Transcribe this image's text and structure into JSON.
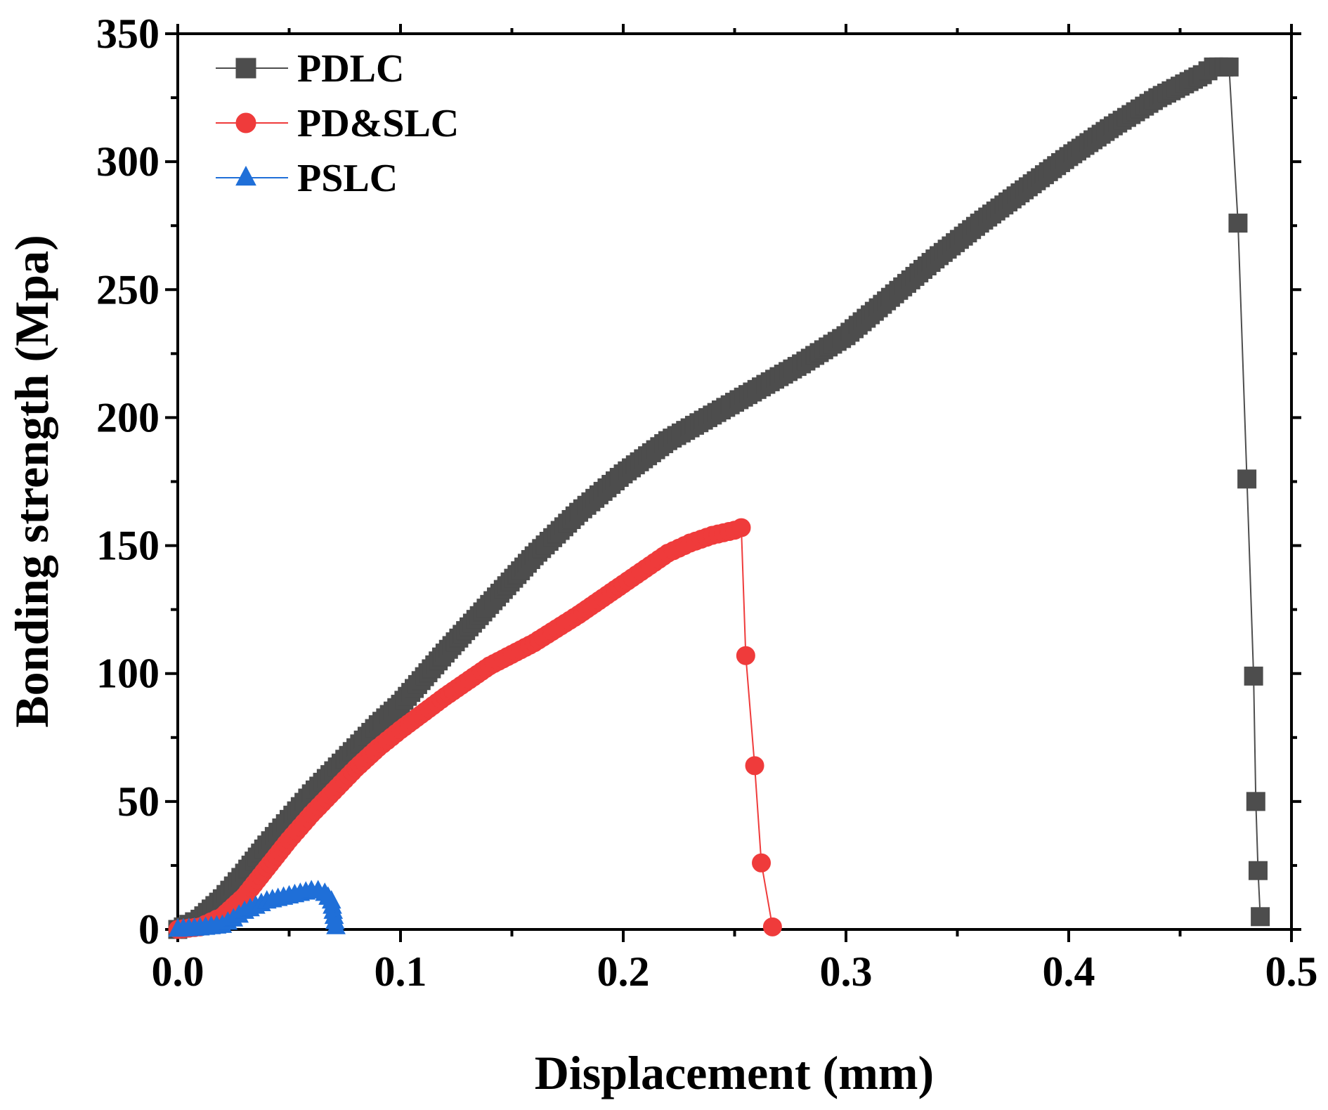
{
  "chart_data": {
    "type": "line",
    "title": "",
    "xlabel": "Displacement (mm)",
    "ylabel": "Bonding strength (Mpa)",
    "xlim": [
      0,
      0.5
    ],
    "ylim": [
      0,
      350
    ],
    "x_ticks": [
      0.0,
      0.1,
      0.2,
      0.3,
      0.4,
      0.5
    ],
    "x_tick_labels": [
      "0.0",
      "0.1",
      "0.2",
      "0.3",
      "0.4",
      "0.5"
    ],
    "y_ticks": [
      0,
      50,
      100,
      150,
      200,
      250,
      300,
      350
    ],
    "y_tick_labels": [
      "0",
      "50",
      "100",
      "150",
      "200",
      "250",
      "300",
      "350"
    ],
    "legend_position": "top-left",
    "grid": false,
    "series": [
      {
        "name": "PDLC",
        "color": "#4d4d4d",
        "marker": "square",
        "x": [
          0.0,
          0.01,
          0.02,
          0.03,
          0.04,
          0.05,
          0.06,
          0.07,
          0.08,
          0.09,
          0.1,
          0.12,
          0.14,
          0.16,
          0.18,
          0.2,
          0.22,
          0.24,
          0.26,
          0.28,
          0.3,
          0.32,
          0.34,
          0.36,
          0.38,
          0.4,
          0.42,
          0.44,
          0.46,
          0.465,
          0.472,
          0.476,
          0.48,
          0.483,
          0.484,
          0.485,
          0.486
        ],
        "y": [
          0,
          4,
          12,
          22,
          33,
          43,
          53,
          62,
          71,
          80,
          88,
          108,
          127,
          146,
          163,
          178,
          191,
          201,
          211,
          221,
          232,
          247,
          262,
          276,
          289,
          302,
          314,
          325,
          334,
          337,
          337,
          276,
          176,
          99,
          50,
          23,
          5
        ]
      },
      {
        "name": "PD&SLC",
        "color": "#ef3b3b",
        "marker": "circle",
        "x": [
          0.0,
          0.01,
          0.02,
          0.03,
          0.04,
          0.05,
          0.06,
          0.07,
          0.08,
          0.09,
          0.1,
          0.12,
          0.14,
          0.16,
          0.18,
          0.2,
          0.21,
          0.22,
          0.23,
          0.24,
          0.25,
          0.253,
          0.255,
          0.259,
          0.262,
          0.267
        ],
        "y": [
          0,
          1,
          5,
          13,
          24,
          35,
          45,
          54,
          63,
          71,
          78,
          91,
          103,
          112,
          123,
          135,
          141,
          147,
          151,
          154,
          156,
          157,
          107,
          64,
          26,
          1
        ]
      },
      {
        "name": "PSLC",
        "color": "#1f6fd8",
        "marker": "triangle",
        "x": [
          0.0,
          0.01,
          0.02,
          0.025,
          0.03,
          0.035,
          0.04,
          0.045,
          0.05,
          0.055,
          0.06,
          0.063,
          0.066,
          0.069,
          0.071
        ],
        "y": [
          0,
          0.5,
          1.5,
          4,
          7,
          9,
          11,
          12,
          13,
          14,
          15,
          15,
          14,
          11,
          1
        ]
      }
    ]
  }
}
